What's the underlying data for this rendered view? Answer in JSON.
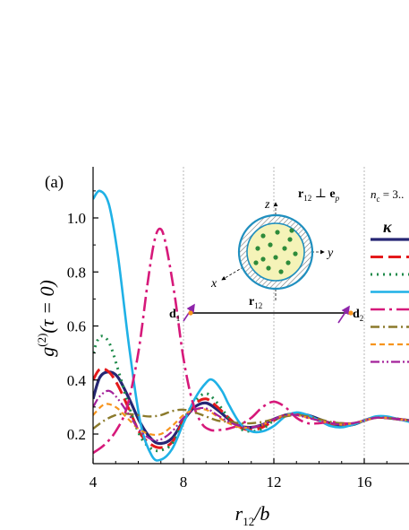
{
  "chart_data": {
    "type": "line",
    "panel_label": "(a)",
    "xlabel_main": "r",
    "xlabel_sub": "12",
    "xlabel_tail": "/b",
    "ylabel_main": "g",
    "ylabel_sup": "(2)",
    "ylabel_tail": "(τ = 0)",
    "xlim": [
      4,
      18
    ],
    "ylim": [
      0.12,
      1.15
    ],
    "xticks": [
      4,
      8,
      12,
      16
    ],
    "xtick_labels": [
      "4",
      "8",
      "12",
      "16"
    ],
    "yticks": [
      0.2,
      0.4,
      0.6,
      0.8,
      1.0
    ],
    "ytick_labels": [
      "0.2",
      "0.4",
      "0.6",
      "0.8",
      "1.0"
    ],
    "grid_x": [
      8,
      12,
      16
    ],
    "legend": {
      "placement": "right",
      "header_main": "n",
      "header_sub": "c",
      "header_tail": " = 3..",
      "title": "κ"
    },
    "inset": {
      "z_label": "z",
      "y_label": "y",
      "x_label": "x",
      "r12_main": "r",
      "r12_sub": "12",
      "perp_main": "r",
      "perp_sub": "12",
      "perp_mid": " ⊥ ",
      "perp_e": "e",
      "perp_e_sub": "p",
      "d1_main": "d",
      "d1_sub": "1",
      "d2_main": "d",
      "d2_sub": "2"
    },
    "series": [
      {
        "color": "#262673",
        "dash": "solid",
        "width": 3.2,
        "points": [
          [
            4,
            0.33
          ],
          [
            4.3,
            0.41
          ],
          [
            4.7,
            0.43
          ],
          [
            5.1,
            0.41
          ],
          [
            5.6,
            0.33
          ],
          [
            6.1,
            0.24
          ],
          [
            6.6,
            0.18
          ],
          [
            7.0,
            0.165
          ],
          [
            7.5,
            0.185
          ],
          [
            8.0,
            0.25
          ],
          [
            8.5,
            0.3
          ],
          [
            9.0,
            0.315
          ],
          [
            9.5,
            0.29
          ],
          [
            10.0,
            0.255
          ],
          [
            10.5,
            0.23
          ],
          [
            11.0,
            0.225
          ],
          [
            11.5,
            0.235
          ],
          [
            12.0,
            0.255
          ],
          [
            12.5,
            0.27
          ],
          [
            13.0,
            0.275
          ],
          [
            13.5,
            0.27
          ],
          [
            14.0,
            0.255
          ],
          [
            14.5,
            0.24
          ],
          [
            15.0,
            0.23
          ],
          [
            15.5,
            0.235
          ],
          [
            16.0,
            0.25
          ],
          [
            16.5,
            0.262
          ],
          [
            17.0,
            0.26
          ],
          [
            17.5,
            0.255
          ],
          [
            18.0,
            0.25
          ]
        ]
      },
      {
        "color": "#e41a1c",
        "dash": "14,6",
        "width": 3,
        "points": [
          [
            4,
            0.4
          ],
          [
            4.3,
            0.44
          ],
          [
            4.7,
            0.43
          ],
          [
            5.1,
            0.38
          ],
          [
            5.6,
            0.29
          ],
          [
            6.1,
            0.2
          ],
          [
            6.6,
            0.16
          ],
          [
            7.0,
            0.15
          ],
          [
            7.5,
            0.17
          ],
          [
            8.0,
            0.25
          ],
          [
            8.5,
            0.31
          ],
          [
            9.0,
            0.33
          ],
          [
            9.5,
            0.3
          ],
          [
            10.0,
            0.26
          ],
          [
            10.5,
            0.225
          ],
          [
            11.0,
            0.215
          ],
          [
            11.5,
            0.225
          ],
          [
            12.0,
            0.25
          ],
          [
            12.5,
            0.27
          ],
          [
            13.0,
            0.275
          ],
          [
            13.5,
            0.265
          ],
          [
            14.0,
            0.25
          ],
          [
            14.5,
            0.235
          ],
          [
            15.0,
            0.23
          ],
          [
            15.5,
            0.235
          ],
          [
            16.0,
            0.25
          ],
          [
            16.5,
            0.262
          ],
          [
            17.0,
            0.26
          ],
          [
            17.5,
            0.255
          ],
          [
            18.0,
            0.25
          ]
        ]
      },
      {
        "color": "#1e8a4a",
        "dash": "2,5",
        "width": 3,
        "points": [
          [
            4,
            0.5
          ],
          [
            4.3,
            0.56
          ],
          [
            4.7,
            0.54
          ],
          [
            5.1,
            0.44
          ],
          [
            5.6,
            0.3
          ],
          [
            6.1,
            0.19
          ],
          [
            6.6,
            0.145
          ],
          [
            7.0,
            0.14
          ],
          [
            7.5,
            0.165
          ],
          [
            8.0,
            0.25
          ],
          [
            8.5,
            0.32
          ],
          [
            9.0,
            0.35
          ],
          [
            9.5,
            0.315
          ],
          [
            10.0,
            0.26
          ],
          [
            10.5,
            0.22
          ],
          [
            11.0,
            0.21
          ],
          [
            11.5,
            0.22
          ],
          [
            12.0,
            0.25
          ],
          [
            12.5,
            0.27
          ],
          [
            13.0,
            0.275
          ],
          [
            13.5,
            0.265
          ],
          [
            14.0,
            0.25
          ],
          [
            14.5,
            0.235
          ],
          [
            15.0,
            0.23
          ],
          [
            15.5,
            0.235
          ],
          [
            16.0,
            0.25
          ],
          [
            16.5,
            0.262
          ],
          [
            17.0,
            0.26
          ],
          [
            17.5,
            0.255
          ],
          [
            18.0,
            0.25
          ]
        ]
      },
      {
        "color": "#1fb1e6",
        "dash": "solid",
        "width": 2.6,
        "points": [
          [
            4,
            1.07
          ],
          [
            4.3,
            1.1
          ],
          [
            4.7,
            1.05
          ],
          [
            5.1,
            0.86
          ],
          [
            5.6,
            0.52
          ],
          [
            6.1,
            0.24
          ],
          [
            6.6,
            0.12
          ],
          [
            7.0,
            0.105
          ],
          [
            7.5,
            0.145
          ],
          [
            8.0,
            0.24
          ],
          [
            8.5,
            0.33
          ],
          [
            9.0,
            0.39
          ],
          [
            9.3,
            0.4
          ],
          [
            9.7,
            0.36
          ],
          [
            10.0,
            0.31
          ],
          [
            10.5,
            0.24
          ],
          [
            11.0,
            0.21
          ],
          [
            11.5,
            0.21
          ],
          [
            12.0,
            0.23
          ],
          [
            12.5,
            0.265
          ],
          [
            13.0,
            0.28
          ],
          [
            13.5,
            0.27
          ],
          [
            14.0,
            0.25
          ],
          [
            14.5,
            0.23
          ],
          [
            15.0,
            0.225
          ],
          [
            15.5,
            0.235
          ],
          [
            16.0,
            0.25
          ],
          [
            16.5,
            0.265
          ],
          [
            17.0,
            0.265
          ],
          [
            17.5,
            0.255
          ],
          [
            18.0,
            0.245
          ]
        ]
      },
      {
        "color": "#d6197a",
        "dash": "16,5,3,5",
        "width": 2.6,
        "points": [
          [
            4,
            0.13
          ],
          [
            4.5,
            0.16
          ],
          [
            5.0,
            0.21
          ],
          [
            5.5,
            0.3
          ],
          [
            6.0,
            0.5
          ],
          [
            6.4,
            0.75
          ],
          [
            6.7,
            0.91
          ],
          [
            6.95,
            0.96
          ],
          [
            7.2,
            0.91
          ],
          [
            7.6,
            0.72
          ],
          [
            8.0,
            0.48
          ],
          [
            8.4,
            0.32
          ],
          [
            8.8,
            0.24
          ],
          [
            9.2,
            0.215
          ],
          [
            9.6,
            0.215
          ],
          [
            10.0,
            0.22
          ],
          [
            10.5,
            0.235
          ],
          [
            11.0,
            0.26
          ],
          [
            11.5,
            0.3
          ],
          [
            12.0,
            0.32
          ],
          [
            12.5,
            0.3
          ],
          [
            13.0,
            0.26
          ],
          [
            13.5,
            0.24
          ],
          [
            14.0,
            0.24
          ],
          [
            14.5,
            0.245
          ],
          [
            15.0,
            0.24
          ],
          [
            15.5,
            0.24
          ],
          [
            16.0,
            0.25
          ],
          [
            16.5,
            0.26
          ],
          [
            17.0,
            0.26
          ],
          [
            17.5,
            0.255
          ],
          [
            18.0,
            0.25
          ]
        ]
      },
      {
        "color": "#8b7a2b",
        "dash": "10,4,2,4",
        "width": 2.4,
        "points": [
          [
            4,
            0.22
          ],
          [
            4.5,
            0.25
          ],
          [
            5.0,
            0.27
          ],
          [
            5.5,
            0.275
          ],
          [
            6.0,
            0.27
          ],
          [
            6.5,
            0.265
          ],
          [
            7.0,
            0.27
          ],
          [
            7.5,
            0.285
          ],
          [
            8.0,
            0.29
          ],
          [
            8.5,
            0.28
          ],
          [
            9.0,
            0.265
          ],
          [
            9.5,
            0.25
          ],
          [
            10.0,
            0.245
          ],
          [
            10.5,
            0.24
          ],
          [
            11.0,
            0.24
          ],
          [
            11.5,
            0.245
          ],
          [
            12.0,
            0.255
          ],
          [
            12.5,
            0.265
          ],
          [
            13.0,
            0.27
          ],
          [
            13.5,
            0.265
          ],
          [
            14.0,
            0.255
          ],
          [
            14.5,
            0.245
          ],
          [
            15.0,
            0.24
          ],
          [
            15.5,
            0.24
          ],
          [
            16.0,
            0.25
          ],
          [
            16.5,
            0.26
          ],
          [
            17.0,
            0.26
          ],
          [
            17.5,
            0.255
          ],
          [
            18.0,
            0.25
          ]
        ]
      },
      {
        "color": "#f7941d",
        "dash": "6,4",
        "width": 2.2,
        "points": [
          [
            4,
            0.27
          ],
          [
            4.5,
            0.31
          ],
          [
            5.0,
            0.3
          ],
          [
            5.5,
            0.26
          ],
          [
            6.0,
            0.22
          ],
          [
            6.5,
            0.2
          ],
          [
            7.0,
            0.2
          ],
          [
            7.5,
            0.23
          ],
          [
            8.0,
            0.27
          ],
          [
            8.5,
            0.29
          ],
          [
            9.0,
            0.29
          ],
          [
            9.5,
            0.265
          ],
          [
            10.0,
            0.24
          ],
          [
            10.5,
            0.225
          ],
          [
            11.0,
            0.225
          ],
          [
            11.5,
            0.235
          ],
          [
            12.0,
            0.255
          ],
          [
            12.5,
            0.27
          ],
          [
            13.0,
            0.27
          ],
          [
            13.5,
            0.26
          ],
          [
            14.0,
            0.25
          ],
          [
            14.5,
            0.24
          ],
          [
            15.0,
            0.235
          ],
          [
            15.5,
            0.24
          ],
          [
            16.0,
            0.25
          ],
          [
            16.5,
            0.26
          ],
          [
            17.0,
            0.26
          ],
          [
            17.5,
            0.255
          ],
          [
            18.0,
            0.25
          ]
        ]
      },
      {
        "color": "#a3219a",
        "dash": "10,3,2,3,2,3",
        "width": 2.2,
        "points": [
          [
            4,
            0.3
          ],
          [
            4.3,
            0.34
          ],
          [
            4.7,
            0.36
          ],
          [
            5.1,
            0.33
          ],
          [
            5.6,
            0.27
          ],
          [
            6.1,
            0.21
          ],
          [
            6.6,
            0.18
          ],
          [
            7.0,
            0.18
          ],
          [
            7.5,
            0.21
          ],
          [
            8.0,
            0.26
          ],
          [
            8.5,
            0.29
          ],
          [
            9.0,
            0.295
          ],
          [
            9.5,
            0.27
          ],
          [
            10.0,
            0.245
          ],
          [
            10.5,
            0.23
          ],
          [
            11.0,
            0.225
          ],
          [
            11.5,
            0.235
          ],
          [
            12.0,
            0.255
          ],
          [
            12.5,
            0.27
          ],
          [
            13.0,
            0.27
          ],
          [
            13.5,
            0.26
          ],
          [
            14.0,
            0.25
          ],
          [
            14.5,
            0.24
          ],
          [
            15.0,
            0.235
          ],
          [
            15.5,
            0.24
          ],
          [
            16.0,
            0.25
          ],
          [
            16.5,
            0.26
          ],
          [
            17.0,
            0.26
          ],
          [
            17.5,
            0.255
          ],
          [
            18.0,
            0.25
          ]
        ]
      }
    ]
  }
}
